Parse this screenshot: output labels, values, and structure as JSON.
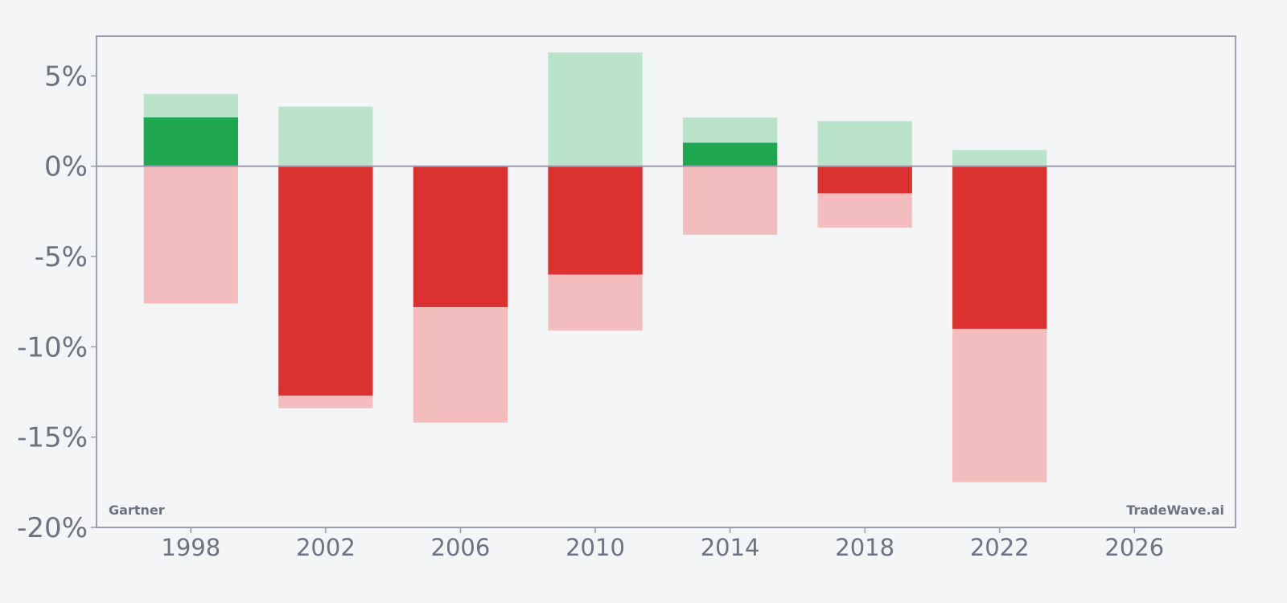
{
  "chart_data": {
    "type": "bar",
    "title": "",
    "xlabel": "",
    "ylabel": "",
    "ylim": [
      -20,
      7.2
    ],
    "xlim": [
      1995.2,
      2029.0
    ],
    "y_ticks": [
      5,
      0,
      -5,
      -10,
      -15,
      -20
    ],
    "y_tick_labels": [
      "5%",
      "0%",
      "-5%",
      "-10%",
      "-15%",
      "-20%"
    ],
    "x_ticks": [
      1998,
      2002,
      2006,
      2010,
      2014,
      2018,
      2022,
      2026
    ],
    "x_tick_labels": [
      "1998",
      "2002",
      "2006",
      "2010",
      "2014",
      "2018",
      "2022",
      "2026"
    ],
    "bar_width": 2.8,
    "grid": false,
    "series": [
      {
        "role": "range_upper",
        "color": "#b9e4c9",
        "points": [
          {
            "x": 1998,
            "y": 4.0
          },
          {
            "x": 2002,
            "y": 3.3
          },
          {
            "x": 2010,
            "y": 6.3
          },
          {
            "x": 2014,
            "y": 2.7
          },
          {
            "x": 2018,
            "y": 2.5
          },
          {
            "x": 2022,
            "y": 0.9
          }
        ]
      },
      {
        "role": "range_lower",
        "color": "#f4bdbd",
        "points": [
          {
            "x": 1998,
            "y": -7.6
          },
          {
            "x": 2002,
            "y": -13.4
          },
          {
            "x": 2006,
            "y": -14.2
          },
          {
            "x": 2010,
            "y": -9.1
          },
          {
            "x": 2014,
            "y": -3.8
          },
          {
            "x": 2018,
            "y": -3.4
          },
          {
            "x": 2022,
            "y": -17.5
          }
        ]
      },
      {
        "role": "value_positive",
        "color": "#1fa750",
        "points": [
          {
            "x": 1998,
            "y": 2.7
          },
          {
            "x": 2014,
            "y": 1.3
          }
        ]
      },
      {
        "role": "value_negative",
        "color": "#dc3131",
        "points": [
          {
            "x": 2002,
            "y": -12.7
          },
          {
            "x": 2006,
            "y": -7.8
          },
          {
            "x": 2010,
            "y": -6.0
          },
          {
            "x": 2018,
            "y": -1.5
          },
          {
            "x": 2022,
            "y": -9.0
          }
        ]
      }
    ],
    "annotations": {
      "source_left": "Gartner",
      "source_right": "TradeWave.ai"
    }
  },
  "colors": {
    "background": "#f4f5f7",
    "frame": "#9a9db0",
    "zero_line": "#9a9db0",
    "text": "#6b7280"
  }
}
